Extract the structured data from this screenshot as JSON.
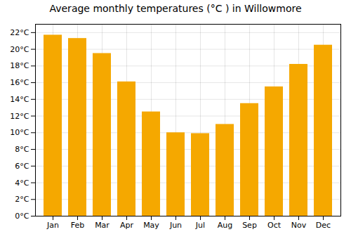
{
  "chart_data": {
    "type": "bar",
    "title": "Average monthly temperatures (°C ) in Willowmore",
    "categories": [
      "Jan",
      "Feb",
      "Mar",
      "Apr",
      "May",
      "Jun",
      "Jul",
      "Aug",
      "Sep",
      "Oct",
      "Nov",
      "Dec"
    ],
    "values": [
      21.7,
      21.3,
      19.5,
      16.1,
      12.5,
      10.0,
      9.9,
      11.0,
      13.5,
      15.5,
      18.2,
      20.5
    ],
    "color": "#F5A800",
    "ylim": [
      0,
      23
    ],
    "yticks": [
      {
        "value": 0,
        "label": "0°C"
      },
      {
        "value": 2,
        "label": "2°C"
      },
      {
        "value": 4,
        "label": "4°C"
      },
      {
        "value": 6,
        "label": "6°C"
      },
      {
        "value": 8,
        "label": "8°C"
      },
      {
        "value": 10,
        "label": "10°C"
      },
      {
        "value": 12,
        "label": "12°C"
      },
      {
        "value": 14,
        "label": "14°C"
      },
      {
        "value": 16,
        "label": "16°C"
      },
      {
        "value": 18,
        "label": "18°C"
      },
      {
        "value": 20,
        "label": "20°C"
      },
      {
        "value": 22,
        "label": "22°C"
      }
    ],
    "grid": true
  }
}
